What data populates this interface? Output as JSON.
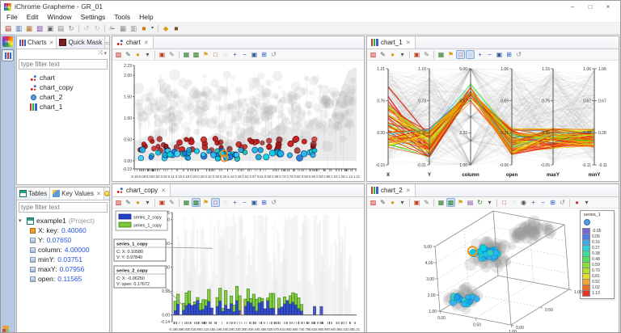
{
  "window": {
    "title": "iChrome Grapheme - GR_01",
    "controls": [
      {
        "name": "minimize",
        "glyph": "–"
      },
      {
        "name": "maximize",
        "glyph": "□"
      },
      {
        "name": "close",
        "glyph": "×"
      }
    ]
  },
  "menu": {
    "items": [
      "File",
      "Edit",
      "Window",
      "Settings",
      "Tools",
      "Help"
    ]
  },
  "main_toolbar": {
    "icons": [
      {
        "name": "new-chart"
      },
      {
        "name": "new-chart-from-template"
      },
      {
        "name": "duplicate-chart"
      },
      {
        "name": "new-chart-group"
      },
      {
        "name": "save"
      },
      {
        "name": "export"
      },
      {
        "name": "refresh"
      },
      {
        "name": "separator"
      },
      {
        "name": "undo",
        "disabled": true
      },
      {
        "name": "redo",
        "disabled": true
      },
      {
        "name": "separator"
      },
      {
        "name": "cut"
      },
      {
        "name": "copy"
      },
      {
        "name": "paste"
      },
      {
        "name": "perspective"
      },
      {
        "name": "perspective-menu"
      },
      {
        "name": "separator"
      },
      {
        "name": "run"
      },
      {
        "name": "workspace"
      }
    ]
  },
  "charts_panel": {
    "tabs": [
      {
        "label": "Charts",
        "active": true,
        "closable": true
      },
      {
        "label": "Quick Mask",
        "active": false,
        "closable": false
      }
    ],
    "filter_placeholder": "type filter text",
    "tree": [
      {
        "label": "chart",
        "icon": "scatter"
      },
      {
        "label": "chart_copy",
        "icon": "scatter"
      },
      {
        "label": "chart_2",
        "icon": "dot"
      },
      {
        "label": "chart_1",
        "icon": "parallel"
      }
    ]
  },
  "key_values_panel": {
    "tabs": [
      {
        "label": "Tables",
        "active": false
      },
      {
        "label": "Key Values",
        "active": true,
        "closable": true
      }
    ],
    "filter_placeholder": "type filter text",
    "root_label": "example1",
    "root_suffix": "(Project)",
    "entries": [
      {
        "key": "X: key:",
        "value": "0.40060",
        "icon": "key"
      },
      {
        "key": "Y:",
        "value": "0.07650",
        "icon": "val"
      },
      {
        "key": "column:",
        "value": "4.00000",
        "icon": "val"
      },
      {
        "key": "minY:",
        "value": "0.03751",
        "icon": "val"
      },
      {
        "key": "maxY:",
        "value": "0.07956",
        "icon": "val"
      },
      {
        "key": "open:",
        "value": "0.11565",
        "icon": "val"
      }
    ]
  },
  "editors": {
    "chart": {
      "tab_label": "chart",
      "toolbar": [
        {
          "name": "palette"
        },
        {
          "name": "brush"
        },
        {
          "name": "color-picker"
        },
        {
          "name": "color-picker-menu"
        },
        {
          "name": "separator"
        },
        {
          "name": "export-image"
        },
        {
          "name": "edit-pencil"
        },
        {
          "name": "separator"
        },
        {
          "name": "data-table"
        },
        {
          "name": "chart-settings"
        },
        {
          "name": "annotation-flag"
        },
        {
          "name": "region-select"
        },
        {
          "name": "lasso-select"
        },
        {
          "name": "zoom-in"
        },
        {
          "name": "zoom-out"
        },
        {
          "name": "zoom-region"
        },
        {
          "name": "zoom-fit"
        },
        {
          "name": "reset-view"
        }
      ]
    },
    "chart_1": {
      "tab_label": "chart_1",
      "toolbar": [
        {
          "name": "palette"
        },
        {
          "name": "brush"
        },
        {
          "name": "color-picker"
        },
        {
          "name": "color-picker-menu"
        },
        {
          "name": "separator"
        },
        {
          "name": "export-image"
        },
        {
          "name": "edit-pencil"
        },
        {
          "name": "separator"
        },
        {
          "name": "data-table"
        },
        {
          "name": "annotation-flag"
        },
        {
          "name": "region-select",
          "pressed": true
        },
        {
          "name": "lasso-select",
          "pressed": true
        },
        {
          "name": "zoom-in"
        },
        {
          "name": "zoom-out"
        },
        {
          "name": "zoom-region"
        },
        {
          "name": "zoom-fit"
        },
        {
          "name": "reset-view"
        }
      ]
    },
    "chart_copy": {
      "tab_label": "chart_copy",
      "toolbar": [
        {
          "name": "palette"
        },
        {
          "name": "brush"
        },
        {
          "name": "color-picker"
        },
        {
          "name": "color-picker-menu"
        },
        {
          "name": "separator"
        },
        {
          "name": "export-image"
        },
        {
          "name": "edit-pencil"
        },
        {
          "name": "separator"
        },
        {
          "name": "data-table"
        },
        {
          "name": "chart-settings",
          "pressed": true
        },
        {
          "name": "annotation-flag"
        },
        {
          "name": "region-select",
          "pressed": true
        },
        {
          "name": "lasso-select"
        },
        {
          "name": "zoom-in"
        },
        {
          "name": "zoom-out"
        },
        {
          "name": "zoom-region"
        },
        {
          "name": "zoom-fit"
        },
        {
          "name": "reset-view"
        }
      ]
    },
    "chart_2": {
      "tab_label": "chart_2",
      "toolbar": [
        {
          "name": "palette"
        },
        {
          "name": "brush"
        },
        {
          "name": "color-picker"
        },
        {
          "name": "color-picker-menu"
        },
        {
          "name": "separator"
        },
        {
          "name": "export-image"
        },
        {
          "name": "edit-pencil"
        },
        {
          "name": "separator"
        },
        {
          "name": "data-table"
        },
        {
          "name": "chart-settings",
          "pressed": true
        },
        {
          "name": "annotation-flag"
        },
        {
          "name": "print"
        },
        {
          "name": "rotate"
        },
        {
          "name": "rotate-menu"
        },
        {
          "name": "separator"
        },
        {
          "name": "region-select"
        },
        {
          "name": "lasso-select"
        },
        {
          "name": "camera"
        },
        {
          "name": "zoom-in"
        },
        {
          "name": "zoom-out"
        },
        {
          "name": "zoom-fit"
        },
        {
          "name": "reset-view"
        },
        {
          "name": "separator"
        },
        {
          "name": "record"
        },
        {
          "name": "record-menu"
        }
      ]
    }
  },
  "chart_data": [
    {
      "panel": "chart",
      "type": "scatter",
      "y_ticks": [
        "2.23",
        "2.00",
        "1.50",
        "1.00",
        "0.50",
        "0.00",
        "-0.19"
      ],
      "x_ticks": [
        "-0.15",
        "-0.08",
        "-0.03",
        "0.02",
        "0.06",
        "0.11",
        "0.15",
        "0.19",
        "0.24",
        "0.28",
        "0.32",
        "0.36",
        "0.40",
        "0.44",
        "0.48",
        "0.52",
        "0.57",
        "0.61",
        "0.65",
        "0.69",
        "0.74",
        "0.78",
        "0.82",
        "0.86",
        "0.90",
        "0.94",
        "0.98",
        "1.03",
        "1.08",
        "1.12",
        "1.21"
      ],
      "xlim": [
        -0.15,
        1.21
      ],
      "ylim": [
        -0.19,
        2.23
      ],
      "series": [
        {
          "name": "background-bubbles",
          "color": "#9a9a9a",
          "opacity": 0.13,
          "count": 320,
          "y_range": [
            0.28,
            2.15
          ]
        },
        {
          "name": "series-red",
          "color": "#c01717",
          "count": 54,
          "y_range": [
            0.23,
            0.52
          ]
        },
        {
          "name": "series-cyan",
          "color": "#00d2e8",
          "count": 62,
          "y_range": [
            0.04,
            0.26
          ]
        }
      ],
      "highlight": {
        "x": 0.4,
        "ys": [
          0.17,
          0.06
        ],
        "color": "#f49016"
      }
    },
    {
      "panel": "chart_1",
      "type": "parallel-coordinates",
      "axes": [
        {
          "name": "X",
          "ticks": [
            "1.21",
            "0.76",
            "0.30",
            "-0.15"
          ]
        },
        {
          "name": "Y",
          "ticks": [
            "1.10",
            "0.73",
            "0.36",
            "-0.01"
          ]
        },
        {
          "name": "column",
          "ticks": [
            "5.00",
            "3.67",
            "2.33",
            "1.00"
          ]
        },
        {
          "name": "open",
          "ticks": [
            "1.06",
            "0.69",
            "0.31",
            "-0.06"
          ]
        },
        {
          "name": "maxY",
          "ticks": [
            "1.15",
            "0.75",
            "0.35",
            "-0.05"
          ]
        },
        {
          "name": "minY",
          "ticks": [
            "1.06",
            "0.67",
            "0.28",
            "-0.11"
          ]
        }
      ],
      "background_lines": {
        "count": 270,
        "color": "#909090"
      },
      "highlight_lines": {
        "count": 72,
        "palette": "red-orange-yellow-green-cyan",
        "column_value": 4.0
      }
    },
    {
      "panel": "chart_copy",
      "type": "bar",
      "y_ticks": [
        "2.15",
        "2.00",
        "1.50",
        "1.00",
        "0.50",
        "0.00",
        "-0.14"
      ],
      "x_ticks": [
        "-0.15",
        "-0.08",
        "-0.03",
        "0.02",
        "0.06",
        "0.11",
        "0.15",
        "0.19",
        "0.24",
        "0.28",
        "0.32",
        "0.36",
        "0.40",
        "0.44",
        "0.48",
        "0.52",
        "0.57",
        "0.61",
        "0.65",
        "0.69",
        "0.74",
        "0.78",
        "0.82",
        "0.86",
        "0.90",
        "0.94",
        "0.98",
        "1.03",
        "1.08",
        "1.21"
      ],
      "xlim": [
        -0.15,
        1.21
      ],
      "ylim": [
        -0.14,
        2.15
      ],
      "legend": [
        {
          "label": "series_2_copy",
          "color": "#2441c9",
          "border": "#141f73"
        },
        {
          "label": "series_1_copy",
          "color": "#7fca34",
          "border": "#2e7a10"
        }
      ],
      "annotations": [
        {
          "title": "series_1_copy",
          "line1": "C: X: 0.10580",
          "line2": "V: Y: 0.97840",
          "tx": 0.146,
          "ty": 1.4
        },
        {
          "title": "series_2_copy",
          "line1": "C: X: -0.06250",
          "line2": "V: open: 0.17672",
          "tx": -0.0625,
          "ty": 0.176
        }
      ],
      "highlight": {
        "x": 0.365,
        "color": "#f49016"
      }
    },
    {
      "panel": "chart_2",
      "type": "scatter3d",
      "z_ticks": [
        "1.00",
        "2.00",
        "3.00",
        "4.00",
        "5.00"
      ],
      "x_ticks": [
        "0.00",
        "0.50",
        "1.00"
      ],
      "y_ticks": [
        "0.00",
        "0.50",
        "1.00"
      ],
      "legend": {
        "name": "series_1",
        "marker_color": "#5a9bd5",
        "scale": [
          {
            "label": "-0.05",
            "color": "#7d62d8"
          },
          {
            "label": "0.05",
            "color": "#4f7ee8"
          },
          {
            "label": "0.16",
            "color": "#3fa9e8"
          },
          {
            "label": "0.27",
            "color": "#2fd3d3"
          },
          {
            "label": "0.38",
            "color": "#3cdf9e"
          },
          {
            "label": "0.48",
            "color": "#52e060"
          },
          {
            "label": "0.59",
            "color": "#86e03c"
          },
          {
            "label": "0.70",
            "color": "#b4e030"
          },
          {
            "label": "0.81",
            "color": "#e6df2a"
          },
          {
            "label": "0.92",
            "color": "#f0a830"
          },
          {
            "label": "1.02",
            "color": "#ee6f24"
          },
          {
            "label": "1.13",
            "color": "#e63323"
          }
        ]
      },
      "clusters": [
        {
          "name": "gray-upper",
          "color": "#9c9c9c"
        },
        {
          "name": "gray-middle",
          "color": "#9c9c9c"
        },
        {
          "name": "gray-lower",
          "color": "#9c9c9c"
        },
        {
          "name": "cyan-middle",
          "color": "#19c8f0"
        },
        {
          "name": "cyan-lower",
          "color": "#19c8f0"
        }
      ],
      "highlight": {
        "x": 0.2,
        "y": 0.38,
        "z": 4.05,
        "color": "#f49016"
      }
    }
  ]
}
